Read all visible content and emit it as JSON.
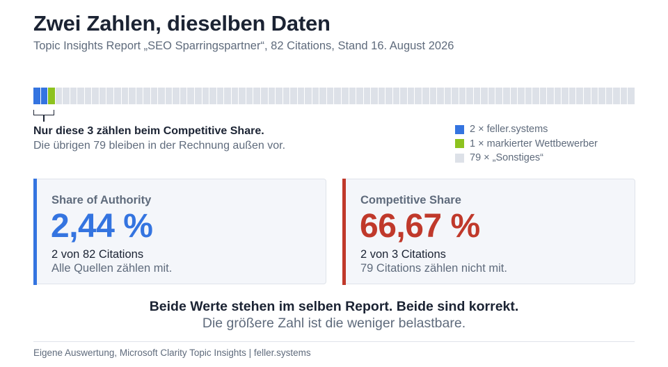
{
  "header": {
    "title": "Zwei Zahlen, dieselben Daten",
    "subtitle": "Topic Insights Report „SEO Sparringspartner“, 82 Citations, Stand 16. August 2026"
  },
  "strip": {
    "cells": {
      "blue": 2,
      "green": 1,
      "gray": 79
    },
    "colors": {
      "blue": "#3474e0",
      "green": "#8dc21f",
      "gray": "#dde1e8"
    }
  },
  "note": {
    "strong": "Nur diese 3 zählen beim Competitive Share.",
    "sub": "Die übrigen 79 bleiben in der Rechnung außen vor."
  },
  "legend": [
    {
      "label": "2 × feller.systems",
      "color": "#3474e0"
    },
    {
      "label": "1 × markierter Wettbewerber",
      "color": "#8dc21f"
    },
    {
      "label": "79 × „Sonstiges“",
      "color": "#dde1e8"
    }
  ],
  "cards": {
    "left": {
      "label": "Share of Authority",
      "value": "2,44 %",
      "line1": "2 von 82 Citations",
      "line2": "Alle Quellen zählen mit.",
      "accent": "#3474e0"
    },
    "right": {
      "label": "Competitive Share",
      "value": "66,67 %",
      "line1": "2 von 3 Citations",
      "line2": "79 Citations zählen nicht mit.",
      "accent": "#c0392b"
    }
  },
  "conclusion": {
    "strong": "Beide Werte stehen im selben Report. Beide sind korrekt.",
    "sub": "Die größere Zahl ist die weniger belastbare."
  },
  "footer": {
    "text": "Eigene Auswertung, Microsoft Clarity Topic Insights  |  feller.systems"
  }
}
